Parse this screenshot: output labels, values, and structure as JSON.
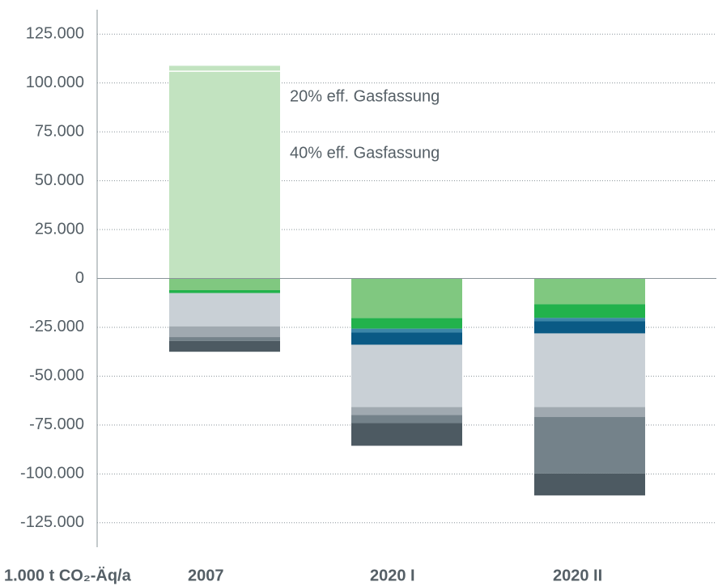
{
  "chart_data": {
    "type": "stacked_bar",
    "y_label": "1.000 t CO₂-Äq/a",
    "categories": [
      "2007",
      "2020 I",
      "2020 II"
    ],
    "ylim": [
      -137500,
      137500
    ],
    "yticks": [
      {
        "value": 125000,
        "label": "125.000"
      },
      {
        "value": 100000,
        "label": "100.000"
      },
      {
        "value": 75000,
        "label": "75.000"
      },
      {
        "value": 50000,
        "label": "50.000"
      },
      {
        "value": 25000,
        "label": "25.000"
      },
      0,
      {
        "value": -25000,
        "label": "-25.000"
      },
      {
        "value": -50000,
        "label": "-50.000"
      },
      {
        "value": -75000,
        "label": "-75.000"
      },
      {
        "value": -100000,
        "label": "-100.000"
      },
      {
        "value": -125000,
        "label": "-125.000"
      }
    ],
    "grid": true,
    "series": [
      {
        "name": "40% eff. Gasfassung",
        "color": "#c2e3c0",
        "values": [
          106000,
          null,
          null
        ]
      },
      {
        "name": "20% eff. Gasfassung",
        "color": "#c2e3c0",
        "values": [
          2800,
          null,
          null
        ]
      },
      {
        "color": "#80c880",
        "values": [
          -6000,
          -20300,
          -13200
        ]
      },
      {
        "color": "#22b24c",
        "values": [
          -1500,
          -5400,
          -7000
        ]
      },
      {
        "color": "#3c86a8",
        "values": [
          null,
          -2000,
          -1700
        ]
      },
      {
        "color": "#0a5a85",
        "values": [
          null,
          -6200,
          -6200
        ]
      },
      {
        "color": "#c9d0d6",
        "values": [
          -17000,
          -31900,
          -37700
        ]
      },
      {
        "color": "#a0a9b0",
        "values": [
          -5500,
          -4100,
          -5000
        ]
      },
      {
        "color": "#74828a",
        "values": [
          -2000,
          -4100,
          -29000
        ]
      },
      {
        "color": "#4d5a62",
        "values": [
          -5500,
          -11600,
          -11200
        ]
      }
    ]
  }
}
